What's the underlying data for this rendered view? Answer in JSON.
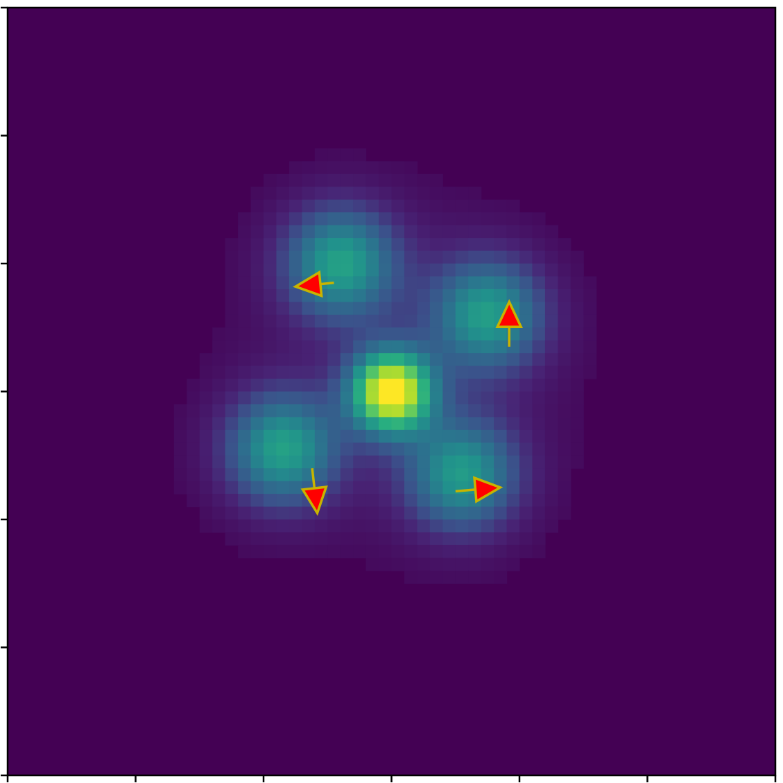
{
  "chart_data": {
    "type": "heatmap",
    "title": "",
    "xlabel": "",
    "ylabel": "",
    "xlim": [
      0,
      60
    ],
    "ylim": [
      0,
      60
    ],
    "x_ticks": [
      0,
      10,
      20,
      30,
      40,
      50,
      60
    ],
    "y_ticks": [
      0,
      10,
      20,
      30,
      40,
      50,
      60
    ],
    "tick_labels_visible": false,
    "grid": false,
    "colormap": "viridis",
    "background_color": "#440154",
    "sources": [
      {
        "x": 30,
        "y": 30,
        "amplitude": 1.0,
        "sigma": 2.2,
        "kind": "central-bright"
      },
      {
        "x": 26,
        "y": 20,
        "amplitude": 0.5,
        "sigma": 3.0,
        "kind": "satellite"
      },
      {
        "x": 37.5,
        "y": 24,
        "amplitude": 0.48,
        "sigma": 3.0,
        "kind": "satellite"
      },
      {
        "x": 21.5,
        "y": 34.5,
        "amplitude": 0.5,
        "sigma": 3.0,
        "kind": "satellite"
      },
      {
        "x": 35.5,
        "y": 36.5,
        "amplitude": 0.47,
        "sigma": 3.0,
        "kind": "satellite"
      }
    ],
    "arrows": [
      {
        "from": [
          25.5,
          21.5
        ],
        "to": [
          22.5,
          21.8
        ],
        "direction": "left"
      },
      {
        "from": [
          39.2,
          26.5
        ],
        "to": [
          39.2,
          23.0
        ],
        "direction": "up"
      },
      {
        "from": [
          23.8,
          36.0
        ],
        "to": [
          24.2,
          39.5
        ],
        "direction": "down"
      },
      {
        "from": [
          35.0,
          37.8
        ],
        "to": [
          38.5,
          37.5
        ],
        "direction": "right"
      }
    ],
    "arrow_colors": {
      "fill": "#ff0000",
      "outline": "#c8b400"
    }
  }
}
